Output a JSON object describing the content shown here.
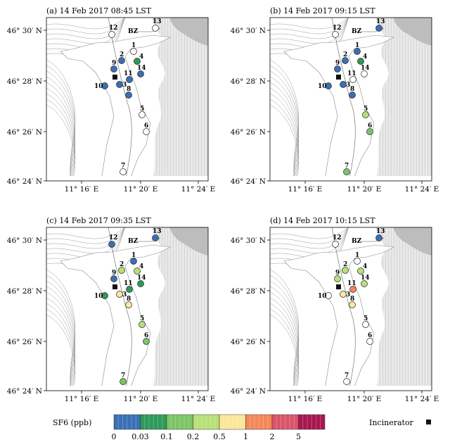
{
  "panels": [
    {
      "title": "(a) 14 Feb 2017 08:45 LST",
      "stations": [
        {
          "id": "1",
          "c": "white"
        },
        {
          "id": "2",
          "c": "blue"
        },
        {
          "id": "3",
          "c": "blue"
        },
        {
          "id": "4",
          "c": "dgreen"
        },
        {
          "id": "5",
          "c": "white"
        },
        {
          "id": "6",
          "c": "white"
        },
        {
          "id": "7",
          "c": "white"
        },
        {
          "id": "8",
          "c": "blue"
        },
        {
          "id": "9",
          "c": "blue"
        },
        {
          "id": "10",
          "c": "blue"
        },
        {
          "id": "11",
          "c": "blue"
        },
        {
          "id": "12",
          "c": "white"
        },
        {
          "id": "13",
          "c": "white"
        },
        {
          "id": "14",
          "c": "blue"
        }
      ]
    },
    {
      "title": "(b) 14 Feb 2017 09:15 LST",
      "stations": [
        {
          "id": "1",
          "c": "blue"
        },
        {
          "id": "2",
          "c": "blue"
        },
        {
          "id": "3",
          "c": "blue"
        },
        {
          "id": "4",
          "c": "dgreen"
        },
        {
          "id": "5",
          "c": "lgreen"
        },
        {
          "id": "6",
          "c": "mgreen"
        },
        {
          "id": "7",
          "c": "mgreen"
        },
        {
          "id": "8",
          "c": "blue"
        },
        {
          "id": "9",
          "c": "blue"
        },
        {
          "id": "10",
          "c": "blue"
        },
        {
          "id": "11",
          "c": "white"
        },
        {
          "id": "12",
          "c": "white"
        },
        {
          "id": "13",
          "c": "blue"
        },
        {
          "id": "14",
          "c": "white"
        }
      ]
    },
    {
      "title": "(c) 14 Feb 2017 09:35 LST",
      "stations": [
        {
          "id": "1",
          "c": "blue"
        },
        {
          "id": "2",
          "c": "lgreen"
        },
        {
          "id": "3",
          "c": "yellow"
        },
        {
          "id": "4",
          "c": "lgreen"
        },
        {
          "id": "5",
          "c": "lgreen"
        },
        {
          "id": "6",
          "c": "mgreen"
        },
        {
          "id": "7",
          "c": "mgreen"
        },
        {
          "id": "8",
          "c": "yellow"
        },
        {
          "id": "9",
          "c": "blue"
        },
        {
          "id": "10",
          "c": "dgreen"
        },
        {
          "id": "11",
          "c": "dgreen"
        },
        {
          "id": "12",
          "c": "blue"
        },
        {
          "id": "13",
          "c": "blue"
        },
        {
          "id": "14",
          "c": "dgreen"
        }
      ]
    },
    {
      "title": "(d) 14 Feb 2017 10:15 LST",
      "stations": [
        {
          "id": "1",
          "c": "white"
        },
        {
          "id": "2",
          "c": "lgreen"
        },
        {
          "id": "3",
          "c": "yellow"
        },
        {
          "id": "4",
          "c": "lgreen"
        },
        {
          "id": "5",
          "c": "white"
        },
        {
          "id": "6",
          "c": "white"
        },
        {
          "id": "7",
          "c": "white"
        },
        {
          "id": "8",
          "c": "yellow"
        },
        {
          "id": "9",
          "c": "lgreen"
        },
        {
          "id": "10",
          "c": "white"
        },
        {
          "id": "11",
          "c": "orange"
        },
        {
          "id": "12",
          "c": "white"
        },
        {
          "id": "13",
          "c": "blue"
        },
        {
          "id": "14",
          "c": "lgreen"
        }
      ]
    }
  ],
  "bz_label": "BZ",
  "y_ticks": [
    "46° 30′ N",
    "46° 28′ N",
    "46° 26′ N",
    "46° 24′ N"
  ],
  "x_ticks": [
    "11° 16′ E",
    "11° 20′ E",
    "11° 24′ E"
  ],
  "colorbar": {
    "label": "SF6 (ppb)",
    "tick_labels": [
      "0",
      "0.03",
      "0.1",
      "0.2",
      "0.5",
      "1",
      "2",
      "5"
    ],
    "colors": [
      "#3a6fb5",
      "#2e9a5a",
      "#7dc466",
      "#b9df7a",
      "#fbe79a",
      "#f4875a",
      "#d9546a",
      "#a8164f"
    ]
  },
  "incinerator_label": "Incinerator",
  "palette": {
    "white": "#ffffff",
    "blue": "#3a6fb5",
    "dgreen": "#2e9a5a",
    "mgreen": "#7dc466",
    "lgreen": "#b9df7a",
    "yellow": "#fbe79a",
    "orange": "#f4875a"
  }
}
